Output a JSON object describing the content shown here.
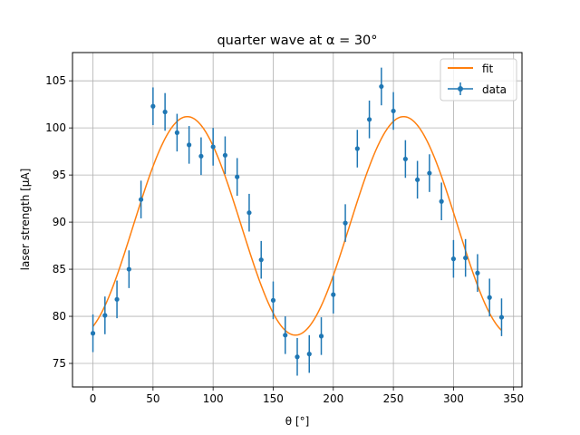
{
  "chart_data": {
    "type": "scatter",
    "title": "quarter wave at α = 30°",
    "xlabel": "θ [°]",
    "ylabel": "laser strength [μA]",
    "xlim": [
      -17,
      357
    ],
    "ylim": [
      72.5,
      108
    ],
    "xticks": [
      0,
      50,
      100,
      150,
      200,
      250,
      300,
      350
    ],
    "yticks": [
      75,
      80,
      85,
      90,
      95,
      100,
      105
    ],
    "grid": true,
    "legend_position": "top-right",
    "colors": {
      "data": "#1f77b4",
      "fit": "#ff7f0e"
    },
    "series": [
      {
        "name": "data",
        "kind": "errorbar",
        "x": [
          0,
          10,
          20,
          30,
          40,
          50,
          60,
          70,
          80,
          90,
          100,
          110,
          120,
          130,
          140,
          150,
          160,
          170,
          180,
          190,
          200,
          210,
          220,
          230,
          240,
          250,
          260,
          270,
          280,
          290,
          300,
          310,
          320,
          330,
          340
        ],
        "y": [
          78.2,
          80.1,
          81.8,
          85.0,
          92.4,
          102.3,
          101.7,
          99.5,
          98.2,
          97.0,
          98.0,
          97.1,
          94.8,
          91.0,
          86.0,
          81.7,
          78.0,
          75.7,
          76.0,
          77.9,
          82.3,
          89.9,
          97.8,
          100.9,
          104.4,
          101.8,
          96.7,
          94.5,
          95.2,
          92.2,
          86.1,
          86.2,
          84.6,
          82.0,
          79.9
        ],
        "yerr": 2.0
      },
      {
        "name": "fit",
        "kind": "line",
        "model": {
          "offset": 89.6,
          "amplitude": 11.6,
          "phase_deg": 78.5,
          "x_start": 0,
          "x_end": 340
        }
      }
    ]
  }
}
